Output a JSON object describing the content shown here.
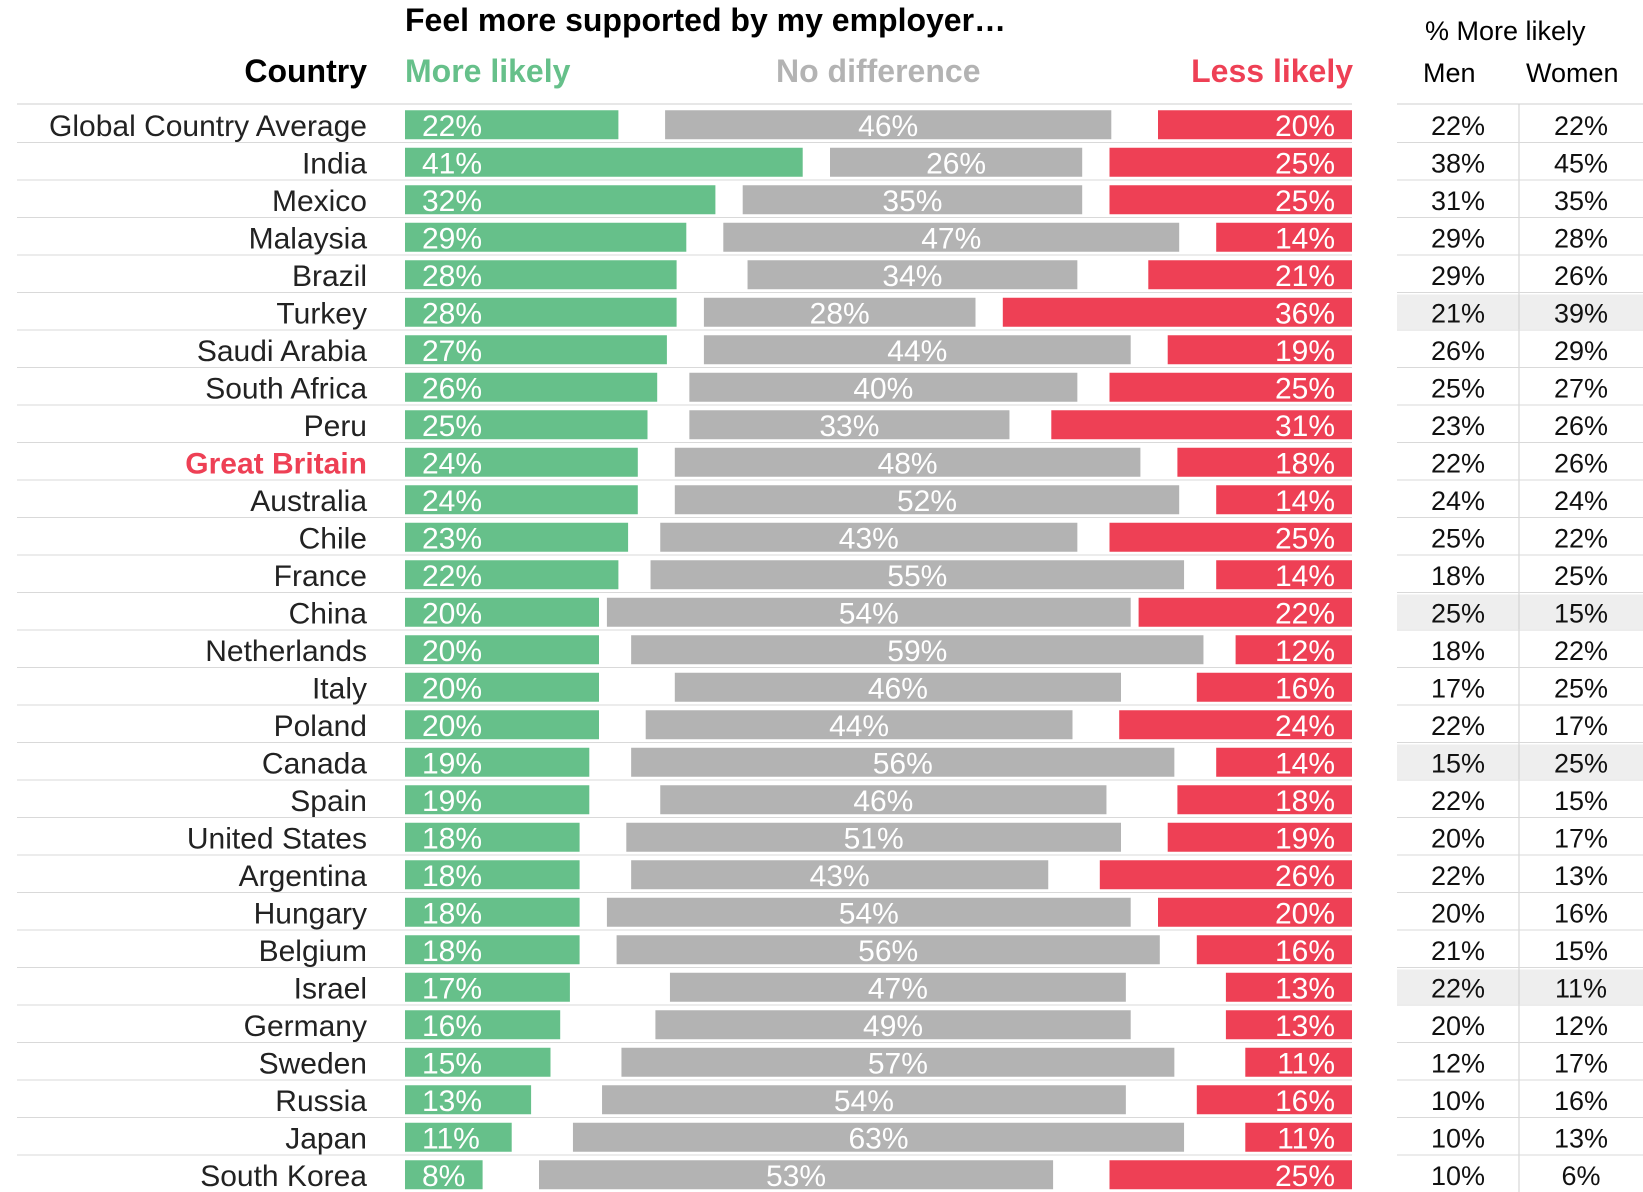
{
  "chart_data": {
    "type": "bar",
    "title": "Feel more supported by my employer…",
    "row_header": "Country",
    "side_table_title": "% More likely",
    "side_table_columns": [
      "Men",
      "Women"
    ],
    "highlight_row": "Great Britain",
    "shaded_side_rows": [
      "Turkey",
      "China",
      "Canada",
      "Israel"
    ],
    "colors": {
      "more": "#66c08a",
      "nodiff": "#b3b3b3",
      "less": "#ee4055",
      "highlight": "#ee4055"
    },
    "series": [
      {
        "name": "More likely",
        "values": [
          22,
          41,
          32,
          29,
          28,
          28,
          27,
          26,
          25,
          24,
          24,
          23,
          22,
          20,
          20,
          20,
          20,
          19,
          19,
          18,
          18,
          18,
          18,
          17,
          16,
          15,
          13,
          11,
          8
        ]
      },
      {
        "name": "No difference",
        "values": [
          46,
          26,
          35,
          47,
          34,
          28,
          44,
          40,
          33,
          48,
          52,
          43,
          55,
          54,
          59,
          46,
          44,
          56,
          46,
          51,
          43,
          54,
          56,
          47,
          49,
          57,
          54,
          63,
          53
        ]
      },
      {
        "name": "Less likely",
        "values": [
          20,
          25,
          25,
          14,
          21,
          36,
          19,
          25,
          31,
          18,
          14,
          25,
          14,
          22,
          12,
          16,
          24,
          14,
          18,
          19,
          26,
          20,
          16,
          13,
          13,
          11,
          16,
          11,
          25
        ]
      }
    ],
    "categories": [
      "Global Country Average",
      "India",
      "Mexico",
      "Malaysia",
      "Brazil",
      "Turkey",
      "Saudi Arabia",
      "South Africa",
      "Peru",
      "Great Britain",
      "Australia",
      "Chile",
      "France",
      "China",
      "Netherlands",
      "Italy",
      "Poland",
      "Canada",
      "Spain",
      "United States",
      "Argentina",
      "Hungary",
      "Belgium",
      "Israel",
      "Germany",
      "Sweden",
      "Russia",
      "Japan",
      "South Korea"
    ],
    "labels": {
      "more": [
        "22%",
        "41%",
        "32%",
        "29%",
        "28%",
        "28%",
        "27%",
        "26%",
        "25%",
        "24%",
        "24%",
        "23%",
        "22%",
        "20%",
        "20%",
        "20%",
        "20%",
        "19%",
        "19%",
        "18%",
        "18%",
        "18%",
        "18%",
        "17%",
        "16%",
        "15%",
        "13%",
        "11%",
        "8%"
      ],
      "nodiff": [
        "46%",
        "26%",
        "35%",
        "47%",
        "34%",
        "28%",
        "44%",
        "40%",
        "33%",
        "48%",
        "52%",
        "43%",
        "55%",
        "54%",
        "59%",
        "46%",
        "44%",
        "56%",
        "46%",
        "51%",
        "43%",
        "54%",
        "56%",
        "47%",
        "49%",
        "57%",
        "54%",
        "63%",
        "53%"
      ],
      "less": [
        "20%",
        "25%",
        "25%",
        "14%",
        "21%",
        "36%",
        "19%",
        "25%",
        "31%",
        "18%",
        "14%",
        "25%",
        "14%",
        "22%",
        "12%",
        "16%",
        "24%",
        "14%",
        "18%",
        "19%",
        "26%",
        "20%",
        "16%",
        "13%",
        "13%",
        "11%",
        "16%",
        "11%",
        "25%"
      ],
      "men": [
        "22%",
        "38%",
        "31%",
        "29%",
        "29%",
        "21%",
        "26%",
        "25%",
        "23%",
        "22%",
        "24%",
        "25%",
        "18%",
        "25%",
        "18%",
        "17%",
        "22%",
        "15%",
        "22%",
        "20%",
        "22%",
        "20%",
        "21%",
        "22%",
        "20%",
        "12%",
        "10%",
        "10%",
        "10%"
      ],
      "women": [
        "22%",
        "45%",
        "35%",
        "28%",
        "26%",
        "39%",
        "29%",
        "27%",
        "26%",
        "26%",
        "24%",
        "22%",
        "25%",
        "15%",
        "22%",
        "25%",
        "17%",
        "25%",
        "15%",
        "17%",
        "13%",
        "16%",
        "15%",
        "11%",
        "12%",
        "17%",
        "16%",
        "13%",
        "6%"
      ]
    }
  }
}
